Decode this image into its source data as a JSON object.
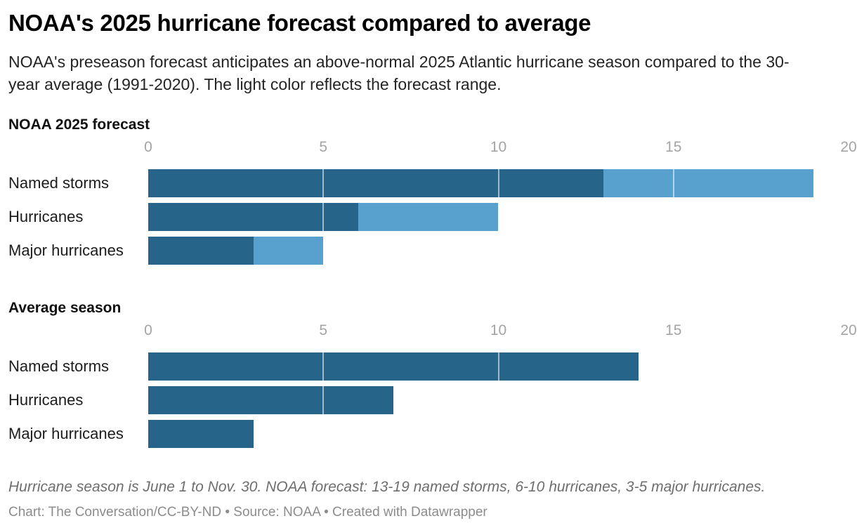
{
  "header": {
    "title": "NOAA's 2025 hurricane forecast compared to average",
    "subtitle": "NOAA's preseason forecast anticipates an above-normal 2025 Atlantic hurricane season compared to the 30-year average (1991-2020). The light color reflects the forecast range."
  },
  "footer": {
    "note": "Hurricane season is June 1 to Nov. 30. NOAA forecast: 13-19 named storms, 6-10 hurricanes, 3-5 major hurricanes.",
    "credit": "Chart: The Conversation/CC-BY-ND • Source: NOAA • Created with Datawrapper"
  },
  "colors": {
    "bar_dark": "#26648a",
    "bar_light": "#58a1ce",
    "gridline_on_bar": "rgba(255,255,255,0.55)",
    "tick_label": "#a4a4a4"
  },
  "chart_data": [
    {
      "type": "bar",
      "orientation": "horizontal",
      "title": "NOAA 2025 forecast",
      "categories": [
        "Named storms",
        "Hurricanes",
        "Major hurricanes"
      ],
      "series": [
        {
          "name": "Forecast lower bound (dark)",
          "color_key": "bar_dark",
          "values": [
            13,
            6,
            3
          ]
        },
        {
          "name": "Forecast range upper bound (light)",
          "color_key": "bar_light",
          "values": [
            19,
            10,
            5
          ]
        }
      ],
      "xlim": [
        0,
        20
      ],
      "ticks": [
        0,
        5,
        10,
        15,
        20
      ],
      "gridlines": [
        5,
        10,
        15
      ],
      "legend": "none"
    },
    {
      "type": "bar",
      "orientation": "horizontal",
      "title": "Average season",
      "categories": [
        "Named storms",
        "Hurricanes",
        "Major hurricanes"
      ],
      "series": [
        {
          "name": "30-year average 1991-2020 (dark)",
          "color_key": "bar_dark",
          "values": [
            14,
            7,
            3
          ]
        }
      ],
      "xlim": [
        0,
        20
      ],
      "ticks": [
        0,
        5,
        10,
        15,
        20
      ],
      "gridlines": [
        5,
        10,
        15
      ],
      "legend": "none"
    }
  ]
}
